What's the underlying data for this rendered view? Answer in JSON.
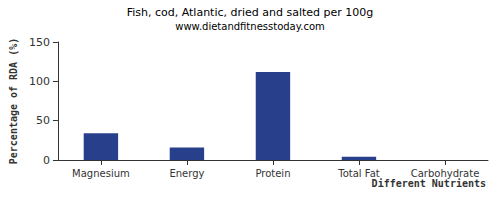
{
  "chart_data": {
    "type": "bar",
    "title": "Fish, cod, Atlantic, dried and salted per 100g",
    "subtitle": "www.dietandfitnesstoday.com",
    "xlabel": "Different Nutrients",
    "ylabel": "Percentage of RDA (%)",
    "categories": [
      "Magnesium",
      "Energy",
      "Protein",
      "Total Fat",
      "Carbohydrate"
    ],
    "values": [
      34,
      16,
      112,
      4,
      0
    ],
    "color": "#283f8c",
    "ylim": [
      0,
      150
    ],
    "yticks": [
      0,
      50,
      100,
      150
    ],
    "grid": false
  }
}
